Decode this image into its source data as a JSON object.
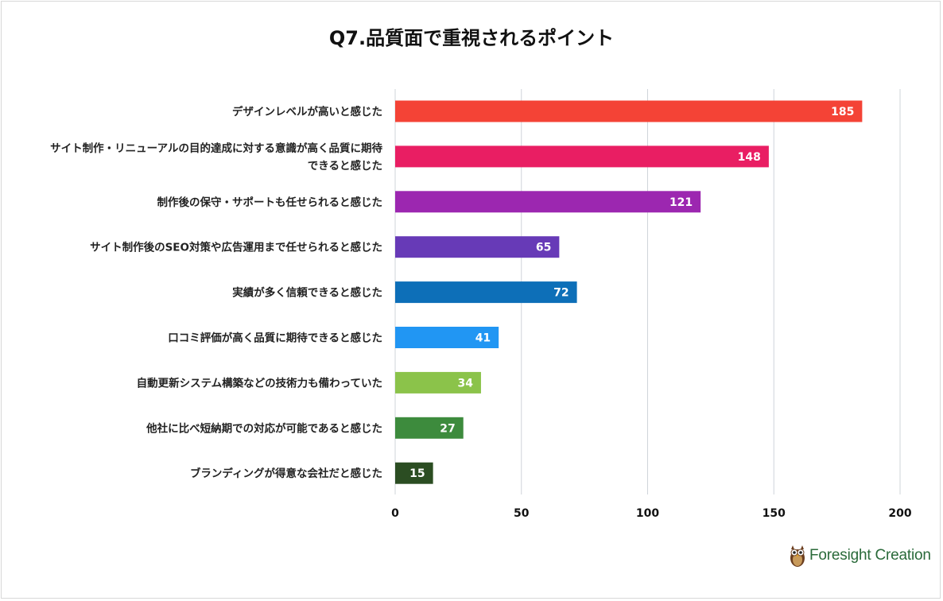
{
  "chart_data": {
    "type": "bar",
    "orientation": "horizontal",
    "title": "Q7.品質面で重視されるポイント",
    "categories": [
      "デザインレベルが高いと感じた",
      "サイト制作・リニューアルの目的達成に対する意識が高く品質に期待できると感じた",
      "制作後の保守・サポートも任せられると感じた",
      "サイト制作後のSEO対策や広告運用まで任せられると感じた",
      "実績が多く信頼できると感じた",
      "口コミ評価が高く品質に期待できると感じた",
      "自動更新システム構築などの技術力も備わっていた",
      "他社に比べ短納期での対応が可能であると感じた",
      "ブランディングが得意な会社だと感じた"
    ],
    "category_lines": [
      [
        "デザインレベルが高いと感じた"
      ],
      [
        "サイト制作・リニューアルの目的達成に対する意識が高く品質に期待",
        "できると感じた"
      ],
      [
        "制作後の保守・サポートも任せられると感じた"
      ],
      [
        "サイト制作後のSEO対策や広告運用まで任せられると感じた"
      ],
      [
        "実績が多く信頼できると感じた"
      ],
      [
        "口コミ評価が高く品質に期待できると感じた"
      ],
      [
        "自動更新システム構築などの技術力も備わっていた"
      ],
      [
        "他社に比べ短納期での対応が可能であると感じた"
      ],
      [
        "ブランディングが得意な会社だと感じた"
      ]
    ],
    "values": [
      185,
      148,
      121,
      65,
      72,
      41,
      34,
      27,
      15
    ],
    "colors": [
      "#f44336",
      "#e91e63",
      "#9c27b0",
      "#673ab7",
      "#0d6fb8",
      "#2196f3",
      "#8bc34a",
      "#3d8b3d",
      "#2b4d22"
    ],
    "xlim": [
      0,
      200
    ],
    "xticks": [
      0,
      50,
      100,
      150,
      200
    ],
    "grid": true,
    "data_labels": "inside-end"
  },
  "logo": {
    "text": "Foresight Creation",
    "icon": "owl-icon"
  }
}
